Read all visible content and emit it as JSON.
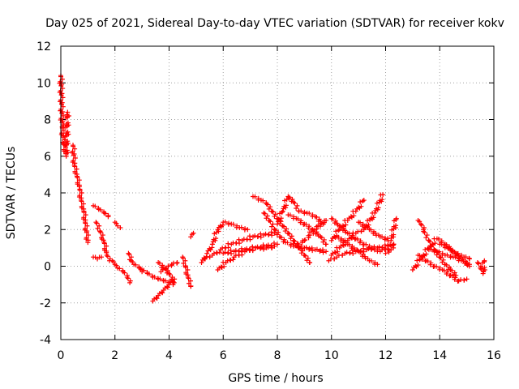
{
  "chart_data": {
    "type": "scatter",
    "title": "Day 025 of 2021, Sidereal Day-to-day VTEC variation (SDTVAR) for receiver kokv",
    "xlabel": "GPS time / hours",
    "ylabel": "SDTVAR / TECUs",
    "xlim": [
      0,
      16
    ],
    "ylim": [
      -4,
      12
    ],
    "xticks": [
      0,
      2,
      4,
      6,
      8,
      10,
      12,
      14,
      16
    ],
    "yticks": [
      -4,
      -2,
      0,
      2,
      4,
      6,
      8,
      10,
      12
    ],
    "grid": true,
    "marker": "+",
    "color": "#ff0000",
    "segments": [
      [
        [
          0.0,
          10.4
        ],
        [
          0.05,
          7.6
        ],
        [
          0.1,
          6.7
        ],
        [
          0.2,
          6.0
        ],
        [
          0.25,
          8.4
        ]
      ],
      [
        [
          0.45,
          6.6
        ],
        [
          0.5,
          5.5
        ],
        [
          0.6,
          4.9
        ],
        [
          0.7,
          4.2
        ],
        [
          0.75,
          3.6
        ],
        [
          0.85,
          3.0
        ],
        [
          0.9,
          2.4
        ],
        [
          1.0,
          1.3
        ]
      ],
      [
        [
          1.2,
          3.3
        ],
        [
          1.4,
          3.1
        ],
        [
          1.6,
          2.9
        ],
        [
          1.75,
          2.7
        ]
      ],
      [
        [
          1.3,
          2.4
        ],
        [
          1.45,
          1.9
        ],
        [
          1.6,
          1.3
        ],
        [
          1.7,
          0.6
        ],
        [
          1.8,
          0.3
        ]
      ],
      [
        [
          1.2,
          0.5
        ],
        [
          1.35,
          0.4
        ],
        [
          1.5,
          0.5
        ]
      ],
      [
        [
          2.0,
          2.4
        ],
        [
          2.1,
          2.2
        ],
        [
          2.2,
          2.1
        ]
      ],
      [
        [
          1.9,
          0.3
        ],
        [
          2.0,
          0.1
        ],
        [
          2.1,
          -0.1
        ],
        [
          2.3,
          -0.3
        ],
        [
          2.45,
          -0.6
        ],
        [
          2.55,
          -0.9
        ]
      ],
      [
        [
          2.5,
          0.7
        ],
        [
          2.6,
          0.3
        ],
        [
          2.7,
          0.1
        ],
        [
          2.9,
          -0.1
        ],
        [
          3.0,
          -0.3
        ]
      ],
      [
        [
          3.0,
          -0.2
        ],
        [
          3.2,
          -0.4
        ],
        [
          3.4,
          -0.6
        ],
        [
          3.6,
          -0.7
        ],
        [
          3.8,
          -0.8
        ],
        [
          4.0,
          -0.9
        ]
      ],
      [
        [
          3.4,
          -1.9
        ],
        [
          3.6,
          -1.6
        ],
        [
          3.8,
          -1.3
        ],
        [
          4.0,
          -1.0
        ],
        [
          4.2,
          -0.7
        ]
      ],
      [
        [
          3.6,
          0.2
        ],
        [
          3.8,
          -0.1
        ],
        [
          4.0,
          -0.4
        ],
        [
          4.1,
          -0.7
        ],
        [
          4.15,
          -1.0
        ]
      ],
      [
        [
          3.7,
          -0.3
        ],
        [
          3.9,
          -0.1
        ],
        [
          4.1,
          0.1
        ],
        [
          4.3,
          0.2
        ]
      ],
      [
        [
          4.5,
          0.5
        ],
        [
          4.6,
          0.0
        ],
        [
          4.7,
          -0.6
        ],
        [
          4.8,
          -1.1
        ]
      ],
      [
        [
          4.8,
          1.6
        ],
        [
          4.9,
          1.8
        ]
      ],
      [
        [
          5.2,
          0.2
        ],
        [
          5.4,
          0.7
        ],
        [
          5.6,
          1.2
        ],
        [
          5.8,
          2.0
        ],
        [
          6.0,
          2.4
        ],
        [
          6.3,
          2.3
        ],
        [
          6.6,
          2.1
        ],
        [
          6.9,
          2.0
        ]
      ],
      [
        [
          5.3,
          0.4
        ],
        [
          5.6,
          0.6
        ],
        [
          5.9,
          0.9
        ],
        [
          6.3,
          1.2
        ],
        [
          6.7,
          1.4
        ],
        [
          7.1,
          1.6
        ],
        [
          7.5,
          1.7
        ],
        [
          7.9,
          1.8
        ]
      ],
      [
        [
          5.8,
          -0.2
        ],
        [
          6.1,
          0.2
        ],
        [
          6.4,
          0.5
        ],
        [
          6.8,
          0.8
        ],
        [
          7.2,
          1.0
        ],
        [
          7.6,
          1.1
        ],
        [
          8.0,
          1.2
        ]
      ],
      [
        [
          6.0,
          0.7
        ],
        [
          6.4,
          0.8
        ],
        [
          6.8,
          0.9
        ],
        [
          7.2,
          1.0
        ],
        [
          7.6,
          1.0
        ],
        [
          7.8,
          1.0
        ]
      ],
      [
        [
          7.1,
          3.8
        ],
        [
          7.4,
          3.6
        ],
        [
          7.6,
          3.4
        ],
        [
          7.8,
          3.0
        ],
        [
          8.0,
          2.6
        ],
        [
          8.2,
          2.2
        ],
        [
          8.4,
          1.8
        ],
        [
          8.6,
          1.4
        ],
        [
          8.8,
          1.0
        ],
        [
          9.0,
          0.6
        ],
        [
          9.2,
          0.2
        ]
      ],
      [
        [
          7.5,
          2.9
        ],
        [
          7.7,
          2.5
        ],
        [
          7.9,
          2.0
        ],
        [
          8.1,
          1.6
        ],
        [
          8.3,
          1.3
        ],
        [
          8.6,
          1.1
        ],
        [
          9.0,
          1.0
        ],
        [
          9.4,
          0.9
        ],
        [
          9.8,
          0.8
        ]
      ],
      [
        [
          8.0,
          2.3
        ],
        [
          8.2,
          3.0
        ],
        [
          8.4,
          3.8
        ],
        [
          8.6,
          3.5
        ],
        [
          8.8,
          3.0
        ],
        [
          9.1,
          2.9
        ],
        [
          9.4,
          2.7
        ],
        [
          9.7,
          2.3
        ]
      ],
      [
        [
          8.4,
          2.8
        ],
        [
          8.7,
          2.6
        ],
        [
          9.0,
          2.3
        ],
        [
          9.3,
          2.0
        ],
        [
          9.6,
          1.6
        ],
        [
          9.8,
          1.2
        ]
      ],
      [
        [
          9.8,
          2.5
        ],
        [
          9.5,
          2.2
        ],
        [
          9.2,
          1.7
        ],
        [
          9.0,
          1.4
        ],
        [
          8.6,
          1.1
        ]
      ],
      [
        [
          10.0,
          2.6
        ],
        [
          10.3,
          2.2
        ],
        [
          10.6,
          1.8
        ],
        [
          10.9,
          1.5
        ],
        [
          11.2,
          1.2
        ],
        [
          11.5,
          1.0
        ],
        [
          11.8,
          0.8
        ],
        [
          12.2,
          1.1
        ]
      ],
      [
        [
          10.0,
          1.4
        ],
        [
          10.3,
          2.0
        ],
        [
          10.6,
          2.5
        ],
        [
          10.9,
          3.0
        ],
        [
          11.2,
          3.6
        ]
      ],
      [
        [
          10.0,
          0.6
        ],
        [
          10.3,
          1.0
        ],
        [
          10.6,
          1.4
        ],
        [
          10.9,
          1.8
        ],
        [
          11.2,
          2.0
        ],
        [
          11.6,
          2.9
        ],
        [
          11.9,
          3.9
        ]
      ],
      [
        [
          9.9,
          0.3
        ],
        [
          10.2,
          0.5
        ],
        [
          10.5,
          0.7
        ],
        [
          10.9,
          0.8
        ],
        [
          11.3,
          0.9
        ],
        [
          11.7,
          1.0
        ],
        [
          12.1,
          1.1
        ],
        [
          12.3,
          1.2
        ]
      ],
      [
        [
          10.2,
          1.6
        ],
        [
          10.6,
          1.2
        ],
        [
          11.0,
          0.8
        ],
        [
          11.4,
          0.3
        ],
        [
          11.7,
          0.1
        ]
      ],
      [
        [
          11.0,
          2.4
        ],
        [
          11.4,
          2.0
        ],
        [
          11.8,
          1.6
        ],
        [
          12.2,
          1.4
        ],
        [
          12.4,
          2.6
        ]
      ],
      [
        [
          12.3,
          1.2
        ],
        [
          12.2,
          0.9
        ],
        [
          12.0,
          0.7
        ]
      ],
      [
        [
          13.2,
          2.5
        ],
        [
          13.3,
          2.3
        ],
        [
          13.4,
          2.0
        ]
      ],
      [
        [
          13.0,
          -0.2
        ],
        [
          13.3,
          0.4
        ],
        [
          13.6,
          1.0
        ],
        [
          13.9,
          1.5
        ],
        [
          14.2,
          1.2
        ],
        [
          14.5,
          0.8
        ],
        [
          14.8,
          0.4
        ],
        [
          15.1,
          0.0
        ]
      ],
      [
        [
          13.2,
          0.6
        ],
        [
          13.5,
          0.3
        ],
        [
          13.8,
          0.0
        ],
        [
          14.1,
          -0.2
        ],
        [
          14.4,
          -0.5
        ],
        [
          14.7,
          -0.8
        ],
        [
          15.0,
          -0.7
        ]
      ],
      [
        [
          13.4,
          1.9
        ],
        [
          13.6,
          1.4
        ],
        [
          13.8,
          0.9
        ],
        [
          14.0,
          0.5
        ],
        [
          14.2,
          0.1
        ],
        [
          14.4,
          -0.2
        ],
        [
          14.6,
          -0.5
        ]
      ],
      [
        [
          13.6,
          0.9
        ],
        [
          13.9,
          0.8
        ],
        [
          14.2,
          0.6
        ],
        [
          14.5,
          0.5
        ],
        [
          14.8,
          0.3
        ],
        [
          15.1,
          0.1
        ]
      ],
      [
        [
          14.0,
          1.2
        ],
        [
          14.3,
          1.0
        ],
        [
          14.6,
          0.7
        ],
        [
          14.9,
          0.5
        ],
        [
          15.1,
          0.4
        ]
      ],
      [
        [
          15.4,
          0.2
        ],
        [
          15.5,
          -0.1
        ],
        [
          15.6,
          -0.4
        ],
        [
          15.65,
          0.3
        ]
      ]
    ]
  }
}
